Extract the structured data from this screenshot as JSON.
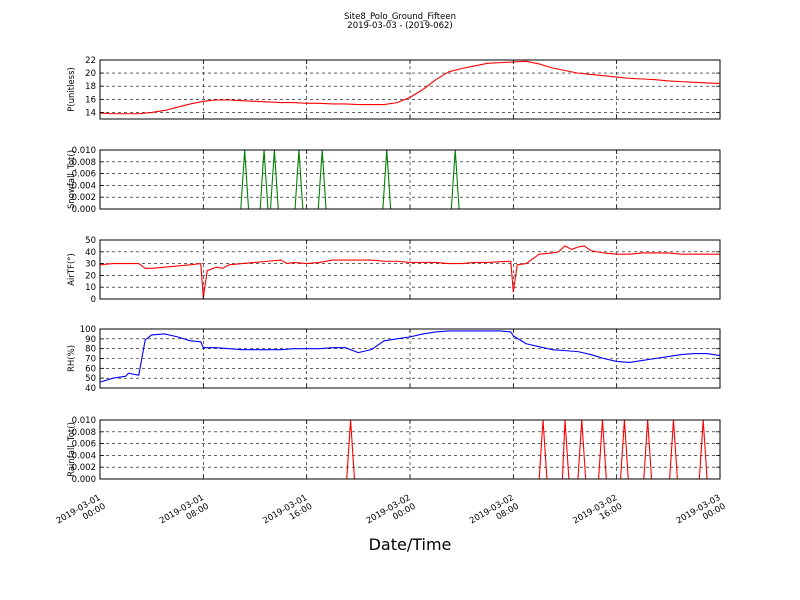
{
  "figure": {
    "title": "Site8_Polo_Ground_Fifteen",
    "subtitle": "2019-03-03 - (2019-062)",
    "xlabel": "Date/Time"
  },
  "chart_data": [
    {
      "type": "line",
      "ylabel": "P(unitless)",
      "ylim": [
        13,
        22
      ],
      "yticks": [
        14,
        16,
        18,
        20,
        22
      ],
      "ytick_labels": [
        "14",
        "16",
        "18",
        "20",
        "22"
      ],
      "xlim": [
        0,
        48
      ],
      "grid": true,
      "series": [
        {
          "color": "#ff0000",
          "x": [
            0,
            1,
            2,
            3,
            4,
            5,
            6,
            7,
            8,
            9,
            10,
            11,
            12,
            13,
            14,
            15,
            16,
            17,
            18,
            19,
            20,
            21,
            22,
            23,
            24,
            25,
            26,
            27,
            28,
            29,
            30,
            31,
            32,
            33,
            34,
            35,
            36,
            37,
            38,
            39,
            40,
            41,
            42,
            43,
            44,
            45,
            46,
            47,
            48
          ],
          "values": [
            13.9,
            13.8,
            13.8,
            13.8,
            14.0,
            14.3,
            14.8,
            15.3,
            15.7,
            15.9,
            15.9,
            15.8,
            15.7,
            15.6,
            15.5,
            15.5,
            15.4,
            15.4,
            15.3,
            15.3,
            15.2,
            15.2,
            15.2,
            15.5,
            16.3,
            17.5,
            19.0,
            20.2,
            20.7,
            21.1,
            21.5,
            21.6,
            21.7,
            21.8,
            21.4,
            20.8,
            20.4,
            20.0,
            19.8,
            19.6,
            19.4,
            19.2,
            19.1,
            19.0,
            18.8,
            18.7,
            18.6,
            18.5,
            18.4
          ]
        }
      ]
    },
    {
      "type": "line",
      "ylabel": "Snowfall_Tot()",
      "ylim": [
        0,
        0.01
      ],
      "yticks": [
        0,
        0.002,
        0.004,
        0.006,
        0.008,
        0.01
      ],
      "ytick_labels": [
        "0.000",
        "0.002",
        "0.004",
        "0.006",
        "0.008",
        "0.010"
      ],
      "xlim": [
        0,
        48
      ],
      "grid": true,
      "series": [
        {
          "color": "#008000",
          "x": [
            0,
            10.9,
            11.2,
            11.5,
            12.4,
            12.7,
            13.0,
            13.2,
            13.5,
            13.8,
            15.1,
            15.4,
            15.7,
            16.9,
            17.2,
            17.5,
            21.9,
            22.2,
            22.5,
            27.2,
            27.5,
            27.8,
            48
          ],
          "values": [
            0,
            0,
            0.01,
            0,
            0,
            0.01,
            0,
            0,
            0.01,
            0,
            0,
            0.01,
            0,
            0,
            0.01,
            0,
            0,
            0.01,
            0,
            0,
            0.01,
            0,
            0
          ]
        }
      ]
    },
    {
      "type": "line",
      "ylabel": "AirTF(°)",
      "ylim": [
        0,
        50
      ],
      "yticks": [
        0,
        10,
        20,
        30,
        40,
        50
      ],
      "ytick_labels": [
        "0",
        "10",
        "20",
        "30",
        "40",
        "50"
      ],
      "xlim": [
        0,
        48
      ],
      "grid": true,
      "series": [
        {
          "color": "#ff0000",
          "x": [
            0,
            1,
            2,
            3,
            3.5,
            4,
            5,
            6,
            7,
            7.8,
            8.0,
            8.3,
            9,
            9.5,
            10,
            11,
            12,
            13,
            14,
            14.5,
            15,
            16,
            17,
            18,
            19,
            20,
            21,
            22,
            23,
            24,
            25,
            26,
            27,
            28,
            29,
            30,
            31.8,
            32.0,
            32.3,
            33,
            34,
            35,
            35.5,
            36,
            36.5,
            37,
            37.5,
            38,
            39,
            40,
            41,
            42,
            43,
            44,
            45,
            46,
            47,
            48
          ],
          "values": [
            29,
            30,
            30,
            30,
            26,
            26,
            27,
            28,
            29,
            30,
            1,
            24,
            27,
            26,
            29,
            30,
            31,
            32,
            33,
            30,
            31,
            30,
            31,
            33,
            33,
            33,
            33,
            32,
            32,
            31,
            31,
            31,
            30,
            30,
            31,
            31,
            32,
            6,
            29,
            30,
            38,
            39,
            40,
            45,
            42,
            44,
            45,
            41,
            39,
            38,
            38,
            39,
            39,
            39,
            38,
            38,
            38,
            38
          ]
        }
      ]
    },
    {
      "type": "line",
      "ylabel": "RH(%)",
      "ylim": [
        40,
        100
      ],
      "yticks": [
        40,
        50,
        60,
        70,
        80,
        90,
        100
      ],
      "ytick_labels": [
        "40",
        "50",
        "60",
        "70",
        "80",
        "90",
        "100"
      ],
      "xlim": [
        0,
        48
      ],
      "grid": true,
      "series": [
        {
          "color": "#0000ff",
          "x": [
            0,
            1,
            2,
            2.2,
            3,
            3.5,
            4,
            5,
            6,
            7,
            7.8,
            8.0,
            9,
            10,
            11,
            12,
            13,
            14,
            15,
            16,
            17,
            18,
            19,
            20,
            21,
            22,
            23,
            24,
            25,
            26,
            27,
            28,
            29,
            30,
            31,
            31.8,
            32.0,
            33,
            34,
            35,
            36,
            37,
            38,
            39,
            40,
            41,
            42,
            43,
            44,
            45,
            46,
            47,
            48
          ],
          "values": [
            46,
            50,
            52,
            55,
            53,
            89,
            94,
            95,
            92,
            88,
            87,
            81,
            81,
            80,
            79,
            79,
            79,
            79,
            80,
            80,
            80,
            81,
            81,
            76,
            79,
            88,
            90,
            92,
            95,
            97,
            98,
            98,
            98,
            98,
            98,
            97,
            93,
            85,
            82,
            79,
            78,
            77,
            74,
            70,
            67,
            66,
            68,
            70,
            72,
            74,
            75,
            75,
            73
          ]
        }
      ]
    },
    {
      "type": "line",
      "ylabel": "Rainfall_Tot()",
      "ylim": [
        0,
        0.01
      ],
      "yticks": [
        0,
        0.002,
        0.004,
        0.006,
        0.008,
        0.01
      ],
      "ytick_labels": [
        "0.000",
        "0.002",
        "0.004",
        "0.006",
        "0.008",
        "0.010"
      ],
      "xlim": [
        0,
        48
      ],
      "grid": true,
      "series": [
        {
          "color": "#ff0000",
          "x": [
            0,
            19.1,
            19.4,
            19.7,
            34.0,
            34.3,
            34.6,
            35.8,
            36.0,
            36.3,
            37.0,
            37.3,
            37.6,
            38.6,
            38.9,
            39.2,
            40.3,
            40.6,
            40.9,
            42.1,
            42.4,
            42.7,
            44.1,
            44.4,
            44.7,
            46.4,
            46.7,
            47.0,
            48
          ],
          "values": [
            0,
            0,
            0.01,
            0,
            0,
            0.01,
            0,
            0,
            0.01,
            0,
            0,
            0.01,
            0,
            0,
            0.01,
            0,
            0,
            0.01,
            0,
            0,
            0.01,
            0,
            0,
            0.01,
            0,
            0,
            0.01,
            0,
            0
          ]
        }
      ]
    }
  ],
  "x_axis": {
    "ticks": [
      0,
      8,
      16,
      24,
      32,
      40,
      48
    ],
    "tick_labels": [
      [
        "2019-03-01",
        "00:00"
      ],
      [
        "2019-03-01",
        "08:00"
      ],
      [
        "2019-03-01",
        "16:00"
      ],
      [
        "2019-03-02",
        "00:00"
      ],
      [
        "2019-03-02",
        "08:00"
      ],
      [
        "2019-03-02",
        "16:00"
      ],
      [
        "2019-03-03",
        "00:00"
      ]
    ]
  }
}
